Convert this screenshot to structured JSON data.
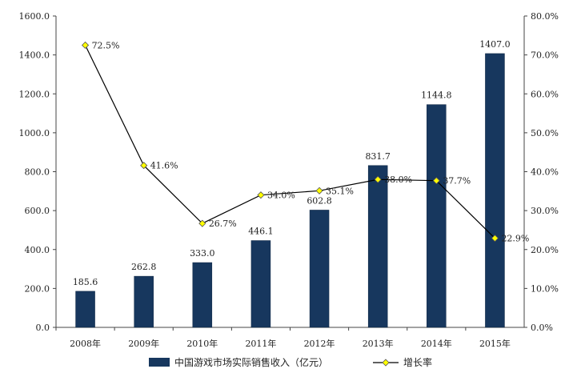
{
  "chart_data": {
    "type": "bar",
    "title": "",
    "categories": [
      "2008年",
      "2009年",
      "2010年",
      "2011年",
      "2012年",
      "2013年",
      "2014年",
      "2015年"
    ],
    "series": [
      {
        "name": "中国游戏市场实际销售收入（亿元）",
        "type": "bar",
        "axis": "left",
        "color": "#17375e",
        "values": [
          185.6,
          262.8,
          333.0,
          446.1,
          602.8,
          831.7,
          1144.8,
          1407.0
        ],
        "labels": [
          "185.6",
          "262.8",
          "333.0",
          "446.1",
          "602.8",
          "831.7",
          "1144.8",
          "1407.0"
        ]
      },
      {
        "name": "增长率",
        "type": "line",
        "axis": "right",
        "color": "#000000",
        "marker_color": "#ffff00",
        "values": [
          72.5,
          41.6,
          26.7,
          34.0,
          35.1,
          38.0,
          37.7,
          22.9
        ],
        "labels": [
          "72.5%",
          "41.6%",
          "26.7%",
          "34.0%",
          "35.1%",
          "38.0%",
          "37.7%",
          "22.9%"
        ]
      }
    ],
    "y_left": {
      "range": [
        0,
        1600
      ],
      "ticks": [
        "0.0",
        "200.0",
        "400.0",
        "600.0",
        "800.0",
        "1000.0",
        "1200.0",
        "1400.0",
        "1600.0"
      ]
    },
    "y_right": {
      "range": [
        0,
        80
      ],
      "ticks": [
        "0.0%",
        "10.0%",
        "20.0%",
        "30.0%",
        "40.0%",
        "50.0%",
        "60.0%",
        "70.0%",
        "80.0%"
      ]
    },
    "grid": false,
    "legend_position": "bottom"
  }
}
